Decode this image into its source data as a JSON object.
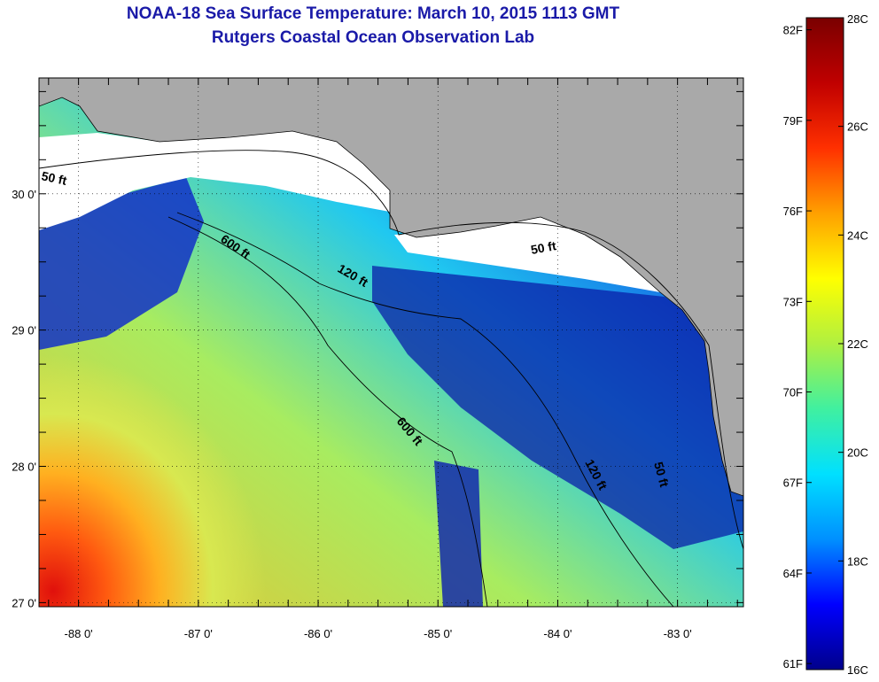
{
  "title": "NOAA-18 Sea Surface Temperature:  March 10, 2015 1113 GMT",
  "subtitle": "Rutgers Coastal Ocean Observation Lab",
  "map": {
    "lon_range": [
      -88.33,
      -82.45
    ],
    "lat_range": [
      26.97,
      30.85
    ],
    "lon_ticks": [
      -88,
      -87,
      -86,
      -85,
      -84,
      -83
    ],
    "lat_ticks": [
      27,
      28,
      29,
      30
    ],
    "lon_labels": [
      "-88 0'",
      "-87 0'",
      "-86 0'",
      "-85 0'",
      "-84 0'",
      "-83 0'"
    ],
    "lat_labels": [
      "27 0'",
      "28 0'",
      "29 0'",
      "30 0'"
    ],
    "contour_labels": [
      "50 ft",
      "600 ft",
      "120 ft",
      "50 ft",
      "600 ft",
      "120 ft",
      "50 ft"
    ]
  },
  "colorbar": {
    "min_c": 16,
    "max_c": 28,
    "celsius_labels": [
      "28C",
      "26C",
      "24C",
      "22C",
      "20C",
      "18C",
      "16C"
    ],
    "fahrenheit_labels": [
      "82F",
      "79F",
      "76F",
      "73F",
      "70F",
      "67F",
      "64F",
      "61F"
    ],
    "colors": [
      "#00008b",
      "#0000ff",
      "#0090ff",
      "#00e0ff",
      "#40f0a0",
      "#b0f040",
      "#ffff00",
      "#ffa000",
      "#ff3000",
      "#c00000",
      "#7a0000"
    ]
  },
  "land_color": "#a9a9a9"
}
